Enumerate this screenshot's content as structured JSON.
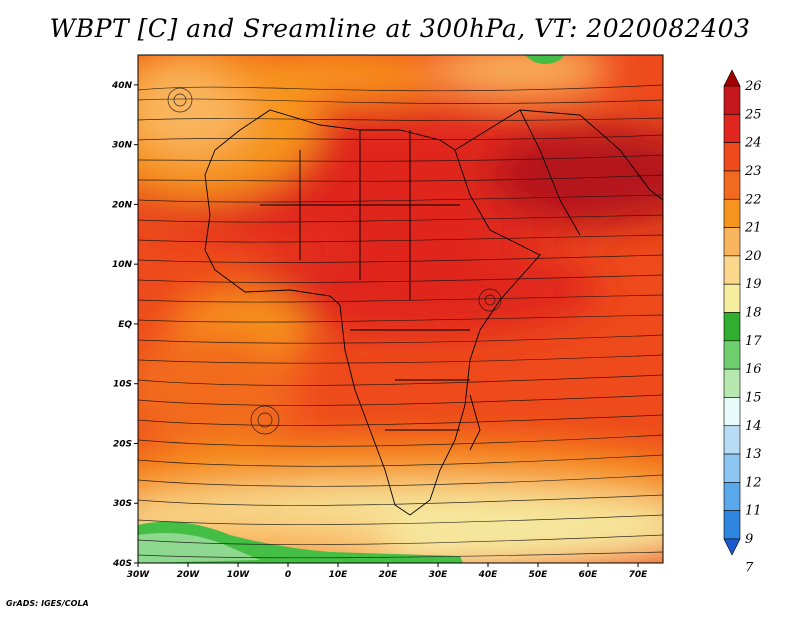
{
  "title": "WBPT [C] and Sreamline at 300hPa, VT: 2020082403",
  "credit": "GrADS: IGES/COLA",
  "map": {
    "lon_labels": [
      "30W",
      "20W",
      "10W",
      "0",
      "10E",
      "20E",
      "30E",
      "40E",
      "50E",
      "60E",
      "70E"
    ],
    "lat_labels": [
      "40N",
      "30N",
      "20N",
      "10N",
      "EQ",
      "10S",
      "20S",
      "30S",
      "40S"
    ],
    "lon_range": [
      -30,
      75
    ],
    "lat_range": [
      -40,
      45
    ],
    "fill_colors": {
      "deep_red": "#b4121a",
      "red": "#e0261e",
      "red_orange": "#ee4a1c",
      "orange": "#f26a1e",
      "dark_orange": "#f7941d",
      "light_orange": "#f9b55d",
      "pale_yellow": "#f6e79c",
      "green": "#44be44",
      "light_green": "#8fd88f"
    }
  },
  "colorbar": {
    "levels": [
      "26",
      "25",
      "24",
      "23",
      "22",
      "21",
      "20",
      "19",
      "18",
      "17",
      "16",
      "15",
      "14",
      "13",
      "12",
      "11",
      "9",
      "7"
    ],
    "colors": [
      "#a00000",
      "#c4161c",
      "#e0261e",
      "#ee4a1c",
      "#f26a1e",
      "#f7941d",
      "#f9b55d",
      "#fbd78e",
      "#f6ed9e",
      "#2fae2f",
      "#6fcf6f",
      "#b7e8b0",
      "#e8fafa",
      "#b8dcf6",
      "#8dc6f2",
      "#5aa8ec",
      "#2f86e0",
      "#1a5cd0"
    ]
  }
}
